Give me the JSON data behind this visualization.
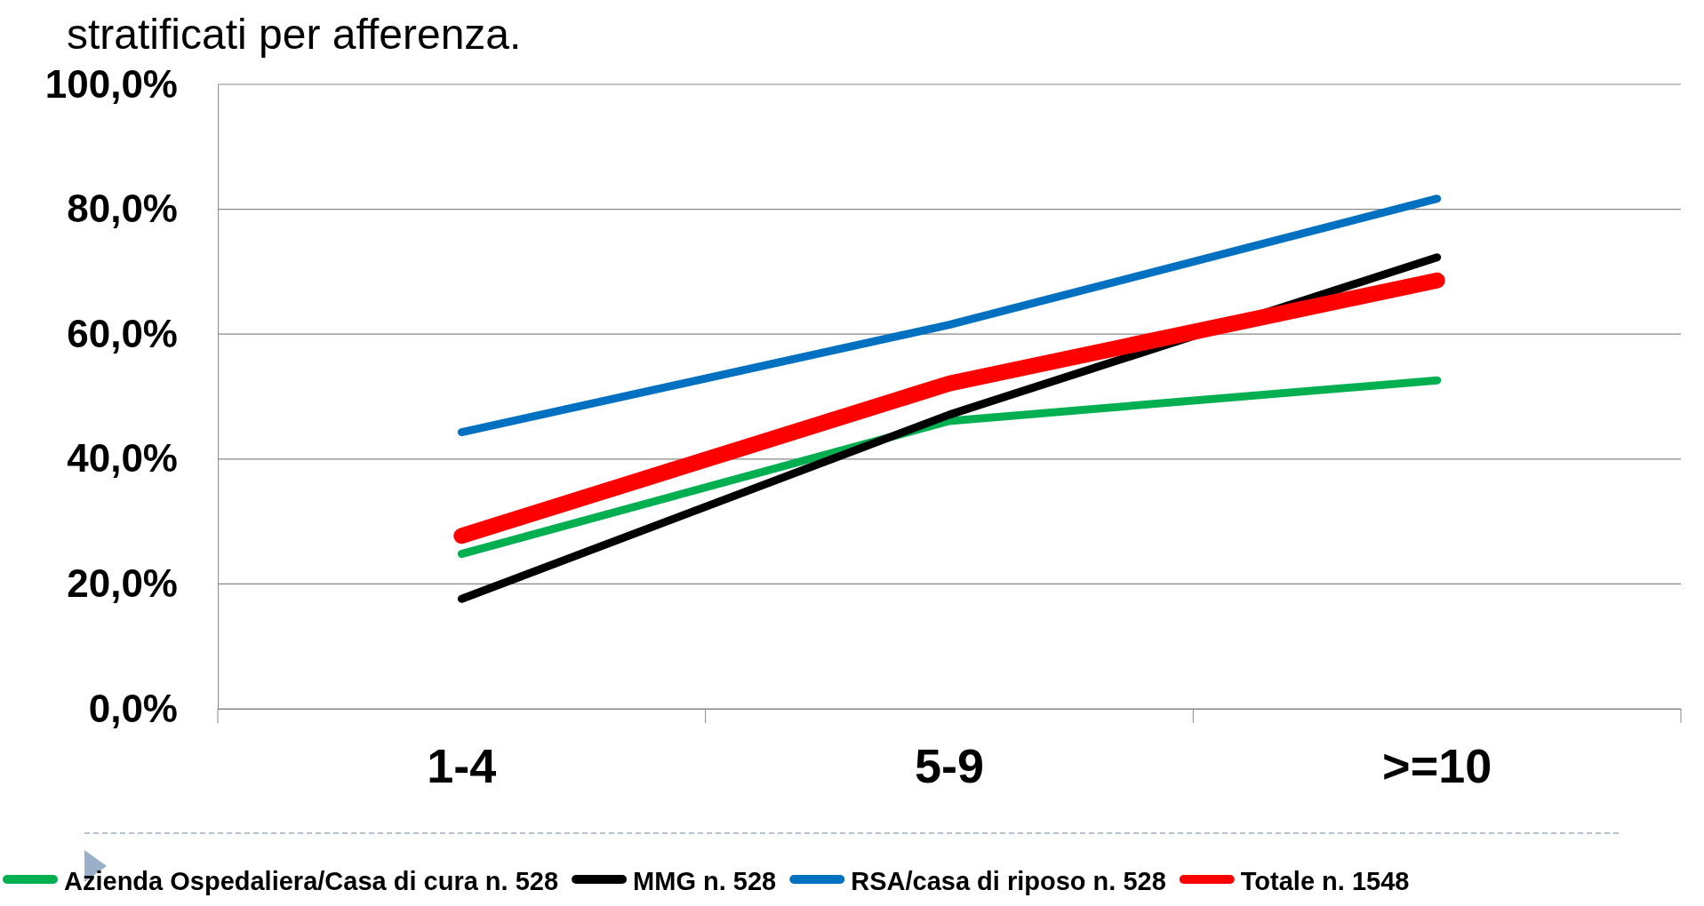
{
  "chart_data": {
    "type": "line",
    "title": "stratificati per afferenza.",
    "categories": [
      "1-4",
      "5-9",
      ">=10"
    ],
    "series": [
      {
        "name": "Azienda Ospedaliera/Casa di cura n. 528",
        "color": "#00b050",
        "values": [
          24.8,
          46.1,
          52.6
        ]
      },
      {
        "name": "MMG n. 528",
        "color": "#000000",
        "values": [
          17.6,
          47.1,
          72.3
        ]
      },
      {
        "name": "RSA/casa di riposo n. 528",
        "color": "#0070c0",
        "values": [
          44.3,
          61.5,
          81.7
        ]
      },
      {
        "name": "Totale n. 1548",
        "color": "#ff0000",
        "values": [
          27.7,
          52.1,
          68.6
        ]
      }
    ],
    "ylim": [
      0,
      100
    ],
    "yticks": [
      {
        "value": 0,
        "label": "0,0%"
      },
      {
        "value": 20,
        "label": "20,0%"
      },
      {
        "value": 40,
        "label": "40,0%"
      },
      {
        "value": 60,
        "label": "60,0%"
      },
      {
        "value": 80,
        "label": "80,0%"
      },
      {
        "value": 100,
        "label": "100,0%"
      }
    ],
    "grid": "y",
    "legend": "bottom",
    "marker": "none",
    "line_style": "solid"
  }
}
